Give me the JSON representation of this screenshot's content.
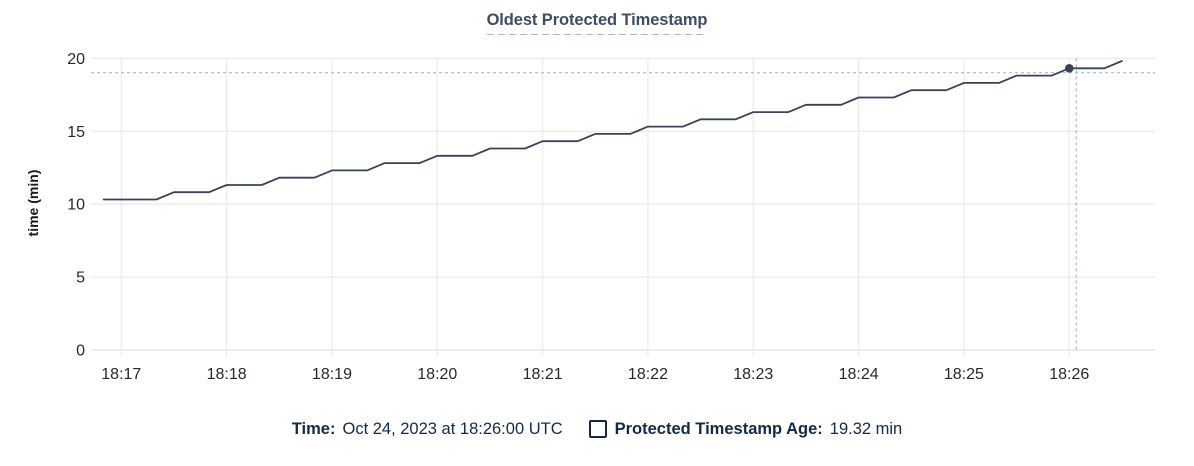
{
  "title": "Oldest Protected Timestamp",
  "ylabel": "time (min)",
  "legend": {
    "time_label": "Time:",
    "time_value": "Oct 24, 2023 at 18:26:00 UTC",
    "age_label": "Protected Timestamp Age:",
    "age_value": "19.32 min",
    "age_checkbox_checked": false
  },
  "colors": {
    "title": "#3f4c63",
    "line": "#37435c",
    "marker": "#37435c",
    "gridline": "#ececec",
    "axis_line": "#e0e0e0",
    "crosshair": "#a7b9c6",
    "tick_text": "#24292f",
    "legend_text": "#13294b"
  },
  "chart_data": {
    "type": "line",
    "title": "Oldest Protected Timestamp",
    "xlabel": "",
    "ylabel": "time (min)",
    "ylim": [
      0,
      20
    ],
    "yticks": [
      0,
      5,
      10,
      15,
      20
    ],
    "xticks": [
      "18:17",
      "18:18",
      "18:19",
      "18:20",
      "18:21",
      "18:22",
      "18:23",
      "18:24",
      "18:25",
      "18:26"
    ],
    "x_window": [
      "18:16:46",
      "18:26:49"
    ],
    "grid": true,
    "legend_position": "bottom",
    "series": [
      {
        "name": "Protected Timestamp Age",
        "unit": "min",
        "points": [
          [
            "18:16:50",
            10.32
          ],
          [
            "18:17:00",
            10.32
          ],
          [
            "18:17:10",
            10.32
          ],
          [
            "18:17:20",
            10.32
          ],
          [
            "18:17:30",
            10.82
          ],
          [
            "18:17:40",
            10.82
          ],
          [
            "18:17:50",
            10.82
          ],
          [
            "18:18:00",
            11.32
          ],
          [
            "18:18:10",
            11.32
          ],
          [
            "18:18:20",
            11.32
          ],
          [
            "18:18:30",
            11.82
          ],
          [
            "18:18:40",
            11.82
          ],
          [
            "18:18:50",
            11.82
          ],
          [
            "18:19:00",
            12.32
          ],
          [
            "18:19:10",
            12.32
          ],
          [
            "18:19:20",
            12.32
          ],
          [
            "18:19:30",
            12.82
          ],
          [
            "18:19:40",
            12.82
          ],
          [
            "18:19:50",
            12.82
          ],
          [
            "18:20:00",
            13.32
          ],
          [
            "18:20:10",
            13.32
          ],
          [
            "18:20:20",
            13.32
          ],
          [
            "18:20:30",
            13.82
          ],
          [
            "18:20:40",
            13.82
          ],
          [
            "18:20:50",
            13.82
          ],
          [
            "18:21:00",
            14.32
          ],
          [
            "18:21:10",
            14.32
          ],
          [
            "18:21:20",
            14.32
          ],
          [
            "18:21:30",
            14.82
          ],
          [
            "18:21:40",
            14.82
          ],
          [
            "18:21:50",
            14.82
          ],
          [
            "18:22:00",
            15.32
          ],
          [
            "18:22:10",
            15.32
          ],
          [
            "18:22:20",
            15.32
          ],
          [
            "18:22:30",
            15.82
          ],
          [
            "18:22:40",
            15.82
          ],
          [
            "18:22:50",
            15.82
          ],
          [
            "18:23:00",
            16.32
          ],
          [
            "18:23:10",
            16.32
          ],
          [
            "18:23:20",
            16.32
          ],
          [
            "18:23:30",
            16.82
          ],
          [
            "18:23:40",
            16.82
          ],
          [
            "18:23:50",
            16.82
          ],
          [
            "18:24:00",
            17.32
          ],
          [
            "18:24:10",
            17.32
          ],
          [
            "18:24:20",
            17.32
          ],
          [
            "18:24:30",
            17.82
          ],
          [
            "18:24:40",
            17.82
          ],
          [
            "18:24:50",
            17.82
          ],
          [
            "18:25:00",
            18.32
          ],
          [
            "18:25:10",
            18.32
          ],
          [
            "18:25:20",
            18.32
          ],
          [
            "18:25:30",
            18.82
          ],
          [
            "18:25:40",
            18.82
          ],
          [
            "18:25:50",
            18.82
          ],
          [
            "18:26:00",
            19.32
          ],
          [
            "18:26:10",
            19.32
          ],
          [
            "18:26:20",
            19.32
          ],
          [
            "18:26:30",
            19.82
          ]
        ]
      }
    ],
    "hover_marker": {
      "time": "18:26:00",
      "value": 19.32
    },
    "crosshair": {
      "time": "18:26:04",
      "value": 19.02
    }
  }
}
